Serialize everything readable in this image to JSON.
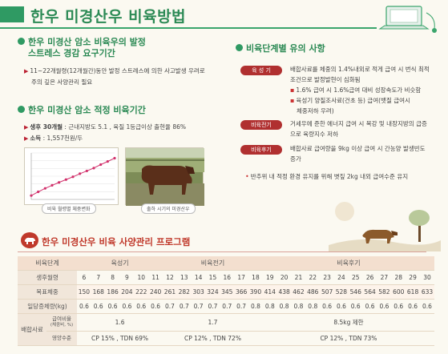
{
  "header": {
    "title": "한우 미경산우 비육방법"
  },
  "left": {
    "section1": {
      "title_line1": "한우 미경산 암소 비육우의 발정",
      "title_line2": "스트레스 경감 요구기간",
      "text_line1": "11~22개월령(12개월간)동안 발정 스트레스에 의한 사고발생 우려로",
      "text_line2": "주의 깊은 사양관리 필요"
    },
    "section2": {
      "title": "한우 미경산 암소 적정 비육기간",
      "item1_label": "생후 30개월",
      "item1_text": " : 근내지방도 5.1 , 육질 1등급이상 출현율 86%",
      "item2_label": "소득",
      "item2_text": " : 1,557천원/두"
    },
    "figure1_caption": "비육 월령별 체중변화",
    "figure2_caption": "출하 시기의 미경산우"
  },
  "chart_data": {
    "type": "line",
    "title": "",
    "xlabel": "",
    "ylabel": "",
    "x": [
      6,
      8,
      10,
      12,
      14,
      16,
      18,
      20,
      22,
      24,
      26,
      28,
      30
    ],
    "series": [
      {
        "values": [
          150,
          198,
          243,
          282,
          320,
          356,
          392,
          432,
          468,
          505,
          550,
          590,
          633
        ]
      }
    ],
    "ylim": [
      100,
      700
    ],
    "grid": true,
    "legend": "none",
    "line_color": "#d1306b"
  },
  "right": {
    "title": "비육단계별 유의 사항",
    "stage1_tag": "육 성 기",
    "stage1_line1": "배합사료를 체중의 1.4%내외로 적게 급여 시 번식 최적",
    "stage1_line2": "조건으로 발정발현이 심화됨",
    "stage1_sub1": "1.6% 급여 시 1.6%급여 대비 성장속도가 비슷함",
    "stage1_sub2a": "육성기 양질조사료(건초 등) 급여(뱃질 급여시",
    "stage1_sub2b": "체중저하 우려)",
    "stage2_tag": "비육전기",
    "stage2_line1": "거세우에 준한 에너지 급여 시 복강 및 내장지방의 급증",
    "stage2_line2": "으로 육량지수 저하",
    "stage3_tag": "비육후기",
    "stage3_line1": "배합사료 급여량을 9kg 이상 급여 시 간농양 발생빈도",
    "stage3_line2": "증가",
    "stage3_note": "반추위 내 적정 환경 유지를 위해 볏짚 2kg 내외 급여수준 유지"
  },
  "program": {
    "title": "한우 미경산우 비육 사양관리 프로그램",
    "head_label": "비육단계",
    "stages": [
      "육성기",
      "비육전기",
      "비육후기"
    ],
    "row_age_label": "생후월령",
    "ages": [
      "6",
      "7",
      "8",
      "9",
      "10",
      "11",
      "12",
      "13",
      "14",
      "15",
      "16",
      "17",
      "18",
      "19",
      "20",
      "21",
      "22",
      "23",
      "24",
      "25",
      "26",
      "27",
      "28",
      "29",
      "30"
    ],
    "row_weight_label": "목표체중",
    "weights": [
      "150",
      "168",
      "186",
      "204",
      "222",
      "240",
      "261",
      "282",
      "303",
      "324",
      "345",
      "366",
      "390",
      "414",
      "438",
      "462",
      "486",
      "507",
      "528",
      "546",
      "564",
      "582",
      "600",
      "618",
      "633"
    ],
    "row_gain_label": "일당증체량(kg)",
    "gains": [
      "0.6",
      "0.6",
      "0.6",
      "0.6",
      "0.6",
      "0.6",
      "0.7",
      "0.7",
      "0.7",
      "0.7",
      "0.7",
      "0.7",
      "0.8",
      "0.8",
      "0.8",
      "0.8",
      "0.8",
      "0.6",
      "0.6",
      "0.6",
      "0.6",
      "0.6",
      "0.6",
      "0.6",
      "0.6"
    ],
    "feed_label": "배합사료",
    "feed_amount_label": "급여비율",
    "feed_amount_sub": "(체중비, %)",
    "feed_amounts": [
      "1.6",
      "1.7",
      "8.5kg 제한"
    ],
    "nutrition_label": "영양수준",
    "nutrition": [
      "CP 15% , TDN 69%",
      "CP 12% , TDN 72%",
      "CP 12% , TDN 73%"
    ]
  }
}
